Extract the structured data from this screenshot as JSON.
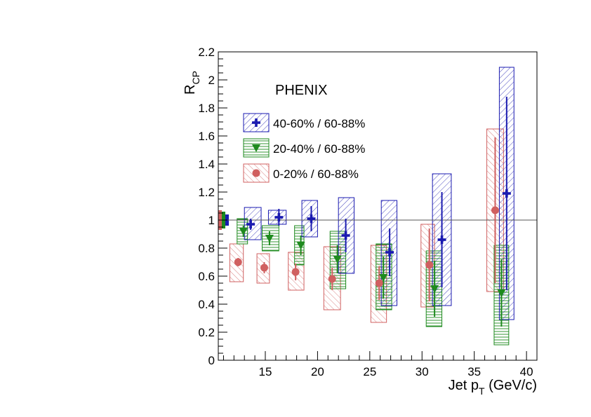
{
  "chart_data": {
    "type": "scatter",
    "title": "PHENIX",
    "xlabel_main": "Jet p",
    "xlabel_sub": "T",
    "xlabel_unit": " (GeV/c)",
    "ylabel_main": "R",
    "ylabel_sub": "CP",
    "xlim": [
      10.5,
      41
    ],
    "ylim": [
      0,
      2.2
    ],
    "x_ticks": [
      15,
      20,
      25,
      30,
      35,
      40
    ],
    "y_ticks": [
      0,
      0.2,
      0.4,
      0.6,
      0.8,
      1,
      1.2,
      1.4,
      1.6,
      1.8,
      2,
      2.2
    ],
    "y_tick_labels": [
      "0",
      "0.2",
      "0.4",
      "0.6",
      "0.8",
      "1",
      "1.2",
      "1.4",
      "1.6",
      "1.8",
      "2",
      "2.2"
    ],
    "reference_line": 1,
    "legend_position": "top-left",
    "series": [
      {
        "name": "40-60% / 60-88%",
        "marker": "cross",
        "color": "#1a1ab0",
        "points": [
          {
            "x": 13.6,
            "y": 0.97,
            "err": 0.04,
            "sys_low": 0.86,
            "sys_high": 1.09,
            "box_x0": 13.0,
            "box_x1": 14.6
          },
          {
            "x": 16.3,
            "y": 1.02,
            "err": 0.06,
            "sys_low": 0.97,
            "sys_high": 1.07,
            "box_x0": 15.3,
            "box_x1": 17.0
          },
          {
            "x": 19.4,
            "y": 1.01,
            "err": 0.09,
            "sys_low": 0.88,
            "sys_high": 1.14,
            "box_x0": 18.5,
            "box_x1": 20.0
          },
          {
            "x": 22.7,
            "y": 0.89,
            "err": 0.12,
            "sys_low": 0.62,
            "sys_high": 1.16,
            "box_x0": 22.0,
            "box_x1": 23.5
          },
          {
            "x": 26.9,
            "y": 0.77,
            "err": 0.17,
            "sys_low": 0.39,
            "sys_high": 1.14,
            "box_x0": 26.1,
            "box_x1": 27.6
          },
          {
            "x": 31.9,
            "y": 0.86,
            "err": 0.34,
            "sys_low": 0.39,
            "sys_high": 1.33,
            "box_x0": 31.0,
            "box_x1": 32.8
          },
          {
            "x": 38.1,
            "y": 1.19,
            "err": 0.69,
            "sys_low": 0.29,
            "sys_high": 2.09,
            "box_x0": 37.4,
            "box_x1": 38.8
          }
        ]
      },
      {
        "name": "20-40% / 60-88%",
        "marker": "triangle-down",
        "color": "#1e8a1e",
        "points": [
          {
            "x": 12.9,
            "y": 0.92,
            "err": 0.04,
            "sys_low": 0.83,
            "sys_high": 1.01,
            "box_x0": 12.3,
            "box_x1": 13.3
          },
          {
            "x": 15.4,
            "y": 0.87,
            "err": 0.05,
            "sys_low": 0.78,
            "sys_high": 0.96,
            "box_x0": 14.7,
            "box_x1": 16.3
          },
          {
            "x": 18.4,
            "y": 0.82,
            "err": 0.07,
            "sys_low": 0.68,
            "sys_high": 0.96,
            "box_x0": 17.8,
            "box_x1": 18.7
          },
          {
            "x": 21.9,
            "y": 0.72,
            "err": 0.1,
            "sys_low": 0.51,
            "sys_high": 0.92,
            "box_x0": 21.2,
            "box_x1": 22.7
          },
          {
            "x": 26.3,
            "y": 0.59,
            "err": 0.15,
            "sys_low": 0.36,
            "sys_high": 0.83,
            "box_x0": 25.6,
            "box_x1": 27.1
          },
          {
            "x": 31.2,
            "y": 0.51,
            "err": 0.2,
            "sys_low": 0.24,
            "sys_high": 0.78,
            "box_x0": 30.4,
            "box_x1": 31.9
          },
          {
            "x": 37.6,
            "y": 0.48,
            "err": 0.24,
            "sys_low": 0.11,
            "sys_high": 0.82,
            "box_x0": 36.9,
            "box_x1": 38.3
          }
        ]
      },
      {
        "name": "0-20% / 60-88%",
        "marker": "circle",
        "color": "#d06060",
        "points": [
          {
            "x": 12.4,
            "y": 0.7,
            "err": 0.03,
            "sys_low": 0.56,
            "sys_high": 0.83,
            "box_x0": 11.6,
            "box_x1": 12.9
          },
          {
            "x": 14.9,
            "y": 0.66,
            "err": 0.04,
            "sys_low": 0.55,
            "sys_high": 0.76,
            "box_x0": 14.2,
            "box_x1": 15.4
          },
          {
            "x": 17.9,
            "y": 0.63,
            "err": 0.06,
            "sys_low": 0.5,
            "sys_high": 0.77,
            "box_x0": 17.2,
            "box_x1": 18.7
          },
          {
            "x": 21.4,
            "y": 0.58,
            "err": 0.08,
            "sys_low": 0.36,
            "sys_high": 0.81,
            "box_x0": 20.6,
            "box_x1": 22.2
          },
          {
            "x": 25.9,
            "y": 0.55,
            "err": 0.12,
            "sys_low": 0.27,
            "sys_high": 0.82,
            "box_x0": 25.1,
            "box_x1": 26.6
          },
          {
            "x": 30.7,
            "y": 0.68,
            "err": 0.26,
            "sys_low": 0.38,
            "sys_high": 0.97,
            "box_x0": 29.9,
            "box_x1": 31.2
          },
          {
            "x": 37.0,
            "y": 1.07,
            "err": 0.52,
            "sys_low": 0.49,
            "sys_high": 1.65,
            "box_x0": 36.2,
            "box_x1": 37.8
          }
        ]
      }
    ],
    "normalization_bars": [
      {
        "color": "#d06060",
        "low": 0.93,
        "high": 1.07
      },
      {
        "color": "#1e8a1e",
        "low": 0.94,
        "high": 1.06
      },
      {
        "color": "#1a1ab0",
        "low": 0.96,
        "high": 1.04
      }
    ]
  }
}
